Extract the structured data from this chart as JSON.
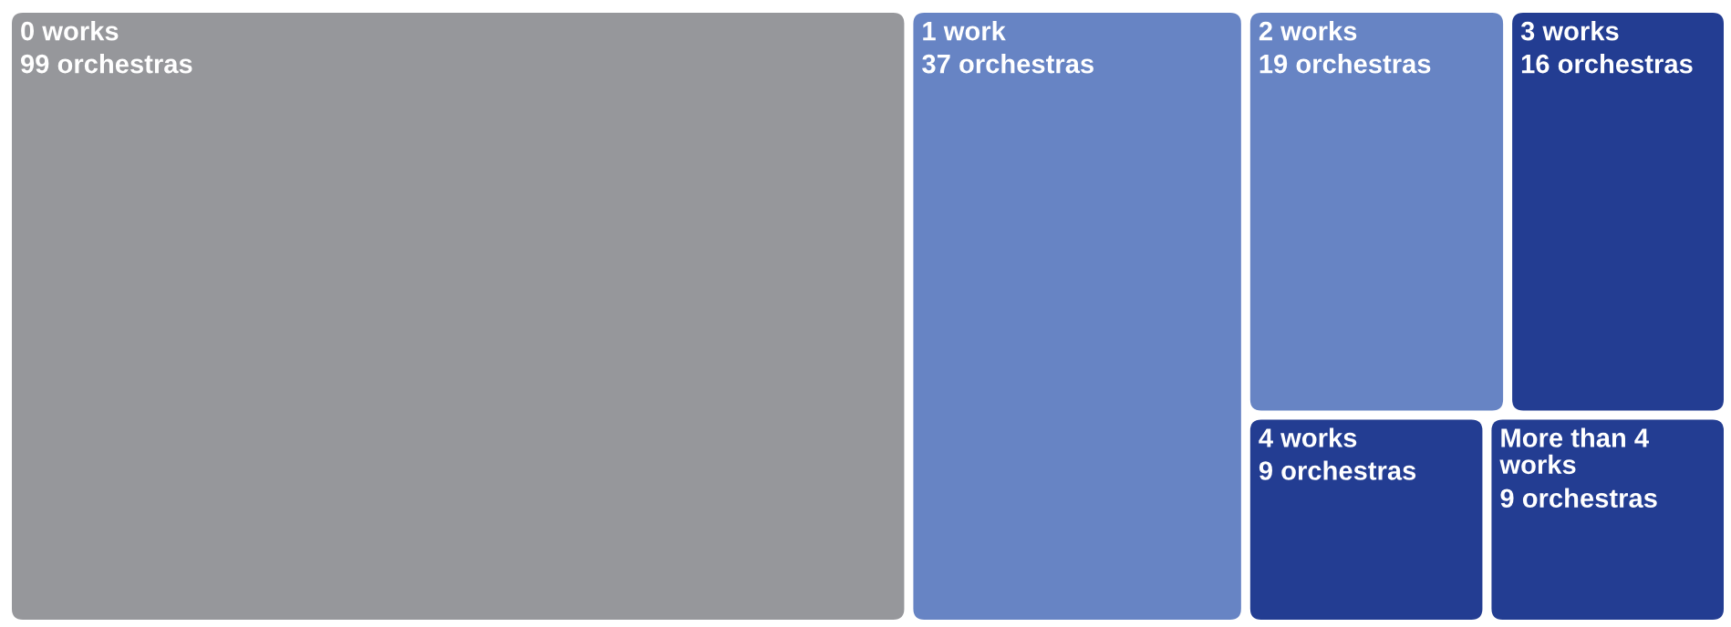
{
  "chart_data": {
    "type": "other",
    "categories": [
      "0 works",
      "1 work",
      "2 works",
      "3 works",
      "4 works",
      "More than 4 works"
    ],
    "values": [
      99,
      37,
      19,
      16,
      9,
      9
    ],
    "value_labels": [
      "99 orchestras",
      "37 orchestras",
      "19 orchestras",
      "16 orchestras",
      "9 orchestras",
      "9 orchestras"
    ],
    "colors": [
      "#96979b",
      "#6784c4",
      "#6784c4",
      "#233d92",
      "#233d92",
      "#233d92"
    ]
  }
}
